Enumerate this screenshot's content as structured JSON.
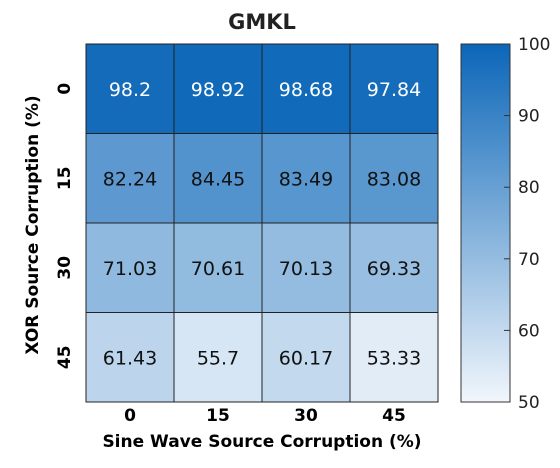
{
  "chart_data": {
    "type": "heatmap",
    "title": "GMKL",
    "xlabel": "Sine Wave Source Corruption (%)",
    "ylabel": "XOR Source Corruption (%)",
    "x_categories": [
      "0",
      "15",
      "30",
      "45"
    ],
    "y_categories": [
      "0",
      "15",
      "30",
      "45"
    ],
    "values": [
      [
        98.2,
        98.92,
        98.68,
        97.84
      ],
      [
        82.24,
        84.45,
        83.49,
        83.08
      ],
      [
        71.03,
        70.61,
        70.13,
        69.33
      ],
      [
        61.43,
        55.7,
        60.17,
        53.33
      ]
    ],
    "value_labels": [
      [
        "98.2",
        "98.92",
        "98.68",
        "97.84"
      ],
      [
        "82.24",
        "84.45",
        "83.49",
        "83.08"
      ],
      [
        "71.03",
        "70.61",
        "70.13",
        "69.33"
      ],
      [
        "61.43",
        "55.7",
        "60.17",
        "53.33"
      ]
    ],
    "colorbar": {
      "range": [
        50,
        100
      ],
      "ticks": [
        50,
        60,
        70,
        80,
        90,
        100
      ],
      "color_low": "#f1f6fc",
      "color_high": "#0b66b8"
    },
    "grid": true,
    "legend": "colorbar-right"
  }
}
